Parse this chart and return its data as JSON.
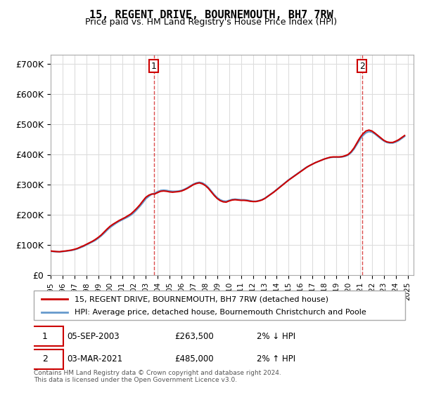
{
  "title": "15, REGENT DRIVE, BOURNEMOUTH, BH7 7RW",
  "subtitle": "Price paid vs. HM Land Registry's House Price Index (HPI)",
  "ylabel_ticks": [
    "£0",
    "£100K",
    "£200K",
    "£300K",
    "£400K",
    "£500K",
    "£600K",
    "£700K"
  ],
  "ytick_vals": [
    0,
    100000,
    200000,
    300000,
    400000,
    500000,
    600000,
    700000
  ],
  "ylim": [
    0,
    730000
  ],
  "xlim_start": 1995.0,
  "xlim_end": 2025.5,
  "hpi_color": "#6699cc",
  "price_color": "#cc0000",
  "marker1_year": 2003.68,
  "marker1_price": 263500,
  "marker2_year": 2021.17,
  "marker2_price": 485000,
  "marker1_label": "1",
  "marker2_label": "2",
  "annotation1": "05-SEP-2003",
  "annotation1_price": "£263,500",
  "annotation1_hpi": "2% ↓ HPI",
  "annotation2": "03-MAR-2021",
  "annotation2_price": "£485,000",
  "annotation2_hpi": "2% ↑ HPI",
  "legend_line1": "15, REGENT DRIVE, BOURNEMOUTH, BH7 7RW (detached house)",
  "legend_line2": "HPI: Average price, detached house, Bournemouth Christchurch and Poole",
  "footer": "Contains HM Land Registry data © Crown copyright and database right 2024.\nThis data is licensed under the Open Government Licence v3.0.",
  "xtick_years": [
    1995,
    1996,
    1997,
    1998,
    1999,
    2000,
    2001,
    2002,
    2003,
    2004,
    2005,
    2006,
    2007,
    2008,
    2009,
    2010,
    2011,
    2012,
    2013,
    2014,
    2015,
    2016,
    2017,
    2018,
    2019,
    2020,
    2021,
    2022,
    2023,
    2024,
    2025
  ],
  "hpi_years": [
    1995.0,
    1995.25,
    1995.5,
    1995.75,
    1996.0,
    1996.25,
    1996.5,
    1996.75,
    1997.0,
    1997.25,
    1997.5,
    1997.75,
    1998.0,
    1998.25,
    1998.5,
    1998.75,
    1999.0,
    1999.25,
    1999.5,
    1999.75,
    2000.0,
    2000.25,
    2000.5,
    2000.75,
    2001.0,
    2001.25,
    2001.5,
    2001.75,
    2002.0,
    2002.25,
    2002.5,
    2002.75,
    2003.0,
    2003.25,
    2003.5,
    2003.75,
    2004.0,
    2004.25,
    2004.5,
    2004.75,
    2005.0,
    2005.25,
    2005.5,
    2005.75,
    2006.0,
    2006.25,
    2006.5,
    2006.75,
    2007.0,
    2007.25,
    2007.5,
    2007.75,
    2008.0,
    2008.25,
    2008.5,
    2008.75,
    2009.0,
    2009.25,
    2009.5,
    2009.75,
    2010.0,
    2010.25,
    2010.5,
    2010.75,
    2011.0,
    2011.25,
    2011.5,
    2011.75,
    2012.0,
    2012.25,
    2012.5,
    2012.75,
    2013.0,
    2013.25,
    2013.5,
    2013.75,
    2014.0,
    2014.25,
    2014.5,
    2014.75,
    2015.0,
    2015.25,
    2015.5,
    2015.75,
    2016.0,
    2016.25,
    2016.5,
    2016.75,
    2017.0,
    2017.25,
    2017.5,
    2017.75,
    2018.0,
    2018.25,
    2018.5,
    2018.75,
    2019.0,
    2019.25,
    2019.5,
    2019.75,
    2020.0,
    2020.25,
    2020.5,
    2020.75,
    2021.0,
    2021.25,
    2021.5,
    2021.75,
    2022.0,
    2022.25,
    2022.5,
    2022.75,
    2023.0,
    2023.25,
    2023.5,
    2023.75,
    2024.0,
    2024.25,
    2024.5,
    2024.75
  ],
  "hpi_values": [
    79000,
    78000,
    77500,
    77000,
    78000,
    79000,
    80500,
    82000,
    84000,
    87000,
    91000,
    95000,
    100000,
    105000,
    110000,
    115000,
    122000,
    130000,
    139000,
    149000,
    158000,
    165000,
    172000,
    178000,
    183000,
    188000,
    193000,
    199000,
    207000,
    217000,
    228000,
    240000,
    253000,
    261000,
    268000,
    272000,
    277000,
    281000,
    282000,
    281000,
    279000,
    278000,
    278000,
    279000,
    281000,
    285000,
    290000,
    296000,
    302000,
    306000,
    308000,
    306000,
    300000,
    291000,
    279000,
    267000,
    257000,
    250000,
    246000,
    245000,
    248000,
    251000,
    252000,
    251000,
    250000,
    250000,
    249000,
    247000,
    245000,
    245000,
    247000,
    250000,
    255000,
    262000,
    269000,
    276000,
    284000,
    292000,
    300000,
    308000,
    316000,
    323000,
    330000,
    337000,
    344000,
    351000,
    358000,
    363000,
    368000,
    373000,
    377000,
    381000,
    385000,
    388000,
    390000,
    391000,
    391000,
    391000,
    392000,
    394000,
    398000,
    406000,
    418000,
    434000,
    450000,
    463000,
    472000,
    476000,
    474000,
    468000,
    460000,
    452000,
    445000,
    440000,
    438000,
    438000,
    441000,
    446000,
    453000,
    460000
  ],
  "price_years": [
    1995.0,
    1995.25,
    1995.5,
    1995.75,
    1996.0,
    1996.25,
    1996.5,
    1996.75,
    1997.0,
    1997.25,
    1997.5,
    1997.75,
    1998.0,
    1998.25,
    1998.5,
    1998.75,
    1999.0,
    1999.25,
    1999.5,
    1999.75,
    2000.0,
    2000.25,
    2000.5,
    2000.75,
    2001.0,
    2001.25,
    2001.5,
    2001.75,
    2002.0,
    2002.25,
    2002.5,
    2002.75,
    2003.0,
    2003.25,
    2003.5,
    2003.75,
    2004.0,
    2004.25,
    2004.5,
    2004.75,
    2005.0,
    2005.25,
    2005.5,
    2005.75,
    2006.0,
    2006.25,
    2006.5,
    2006.75,
    2007.0,
    2007.25,
    2007.5,
    2007.75,
    2008.0,
    2008.25,
    2008.5,
    2008.75,
    2009.0,
    2009.25,
    2009.5,
    2009.75,
    2010.0,
    2010.25,
    2010.5,
    2010.75,
    2011.0,
    2011.25,
    2011.5,
    2011.75,
    2012.0,
    2012.25,
    2012.5,
    2012.75,
    2013.0,
    2013.25,
    2013.5,
    2013.75,
    2014.0,
    2014.25,
    2014.5,
    2014.75,
    2015.0,
    2015.25,
    2015.5,
    2015.75,
    2016.0,
    2016.25,
    2016.5,
    2016.75,
    2017.0,
    2017.25,
    2017.5,
    2017.75,
    2018.0,
    2018.25,
    2018.5,
    2018.75,
    2019.0,
    2019.25,
    2019.5,
    2019.75,
    2020.0,
    2020.25,
    2020.5,
    2020.75,
    2021.0,
    2021.25,
    2021.5,
    2021.75,
    2022.0,
    2022.25,
    2022.5,
    2022.75,
    2023.0,
    2023.25,
    2023.5,
    2023.75,
    2024.0,
    2024.25,
    2024.5,
    2024.75
  ],
  "price_values": [
    80000,
    79000,
    78000,
    77500,
    79000,
    80000,
    81500,
    83000,
    85500,
    88500,
    93000,
    97000,
    102000,
    107000,
    112000,
    118000,
    125000,
    133000,
    143000,
    153000,
    162000,
    169000,
    175000,
    181000,
    186000,
    191000,
    197000,
    203000,
    212000,
    222000,
    233000,
    246000,
    258000,
    265000,
    269000,
    269000,
    274000,
    278000,
    279000,
    278000,
    276000,
    275000,
    276000,
    277000,
    279000,
    283000,
    288000,
    294000,
    300000,
    304000,
    306000,
    303000,
    297000,
    288000,
    276000,
    264000,
    254000,
    247000,
    243000,
    242000,
    246000,
    249000,
    250000,
    249000,
    248000,
    248000,
    247000,
    245000,
    244000,
    244000,
    246000,
    249000,
    254000,
    261000,
    268000,
    275000,
    283000,
    291000,
    299000,
    307000,
    315000,
    322000,
    329000,
    336000,
    343000,
    350000,
    357000,
    363000,
    368000,
    373000,
    377000,
    381000,
    385000,
    388000,
    391000,
    392000,
    392000,
    392000,
    393000,
    396000,
    400000,
    409000,
    422000,
    439000,
    456000,
    469000,
    478000,
    481000,
    478000,
    471000,
    463000,
    455000,
    447000,
    442000,
    440000,
    440000,
    444000,
    449000,
    456000,
    463000
  ]
}
